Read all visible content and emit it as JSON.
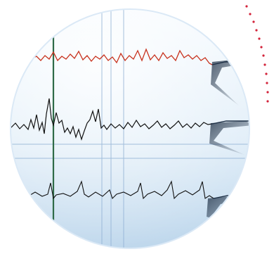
{
  "image": {
    "subject": "physiological-signal-traces-in-circular-frame",
    "colors": {
      "background": "#ffffff",
      "panel_top": "#f4f9fd",
      "panel_bottom": "#bcd6ec",
      "grid": "#8fb0d4",
      "marker_line": "#2f6b48",
      "trace_top": "#c8321e",
      "trace_other": "#111111",
      "dots": "#d3233a"
    },
    "traces": [
      {
        "name": "red-trace",
        "color": "red"
      },
      {
        "name": "middle-trace",
        "color": "black"
      },
      {
        "name": "bottom-trace",
        "color": "black"
      }
    ]
  }
}
